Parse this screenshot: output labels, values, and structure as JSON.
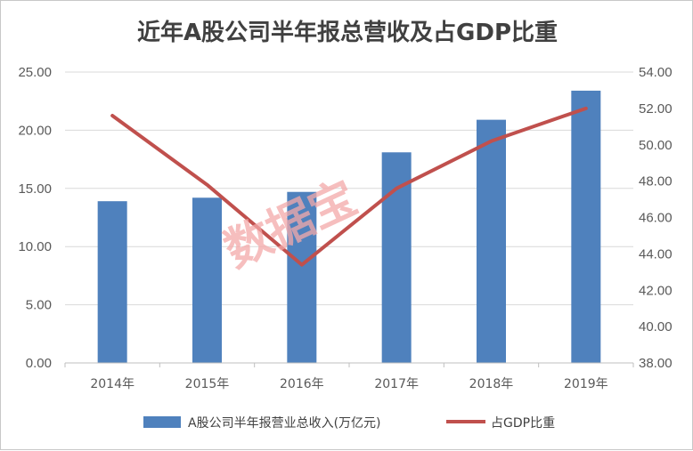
{
  "chart_data": {
    "type": "bar+line",
    "title": "近年A股公司半年报总营收及占GDP比重",
    "categories": [
      "2014年",
      "2015年",
      "2016年",
      "2017年",
      "2018年",
      "2019年"
    ],
    "series": [
      {
        "name": "A股公司半年报营业总收入(万亿元)",
        "type": "bar",
        "axis": "left",
        "color": "#4f81bd",
        "values": [
          13.9,
          14.2,
          14.7,
          18.1,
          20.9,
          23.4
        ]
      },
      {
        "name": "占GDP比重",
        "type": "line",
        "axis": "right",
        "color": "#c0504d",
        "values": [
          51.6,
          47.8,
          43.4,
          47.6,
          50.2,
          52.0
        ]
      }
    ],
    "y_left": {
      "min": 0,
      "max": 25,
      "step": 5,
      "tick_labels": [
        "0.00",
        "5.00",
        "10.00",
        "15.00",
        "20.00",
        "25.00"
      ]
    },
    "y_right": {
      "min": 38,
      "max": 54,
      "step": 2,
      "tick_labels": [
        "38.00",
        "40.00",
        "42.00",
        "44.00",
        "46.00",
        "48.00",
        "50.00",
        "52.00",
        "54.00"
      ]
    },
    "grid": true,
    "legend_position": "bottom"
  },
  "watermark": "数据宝"
}
